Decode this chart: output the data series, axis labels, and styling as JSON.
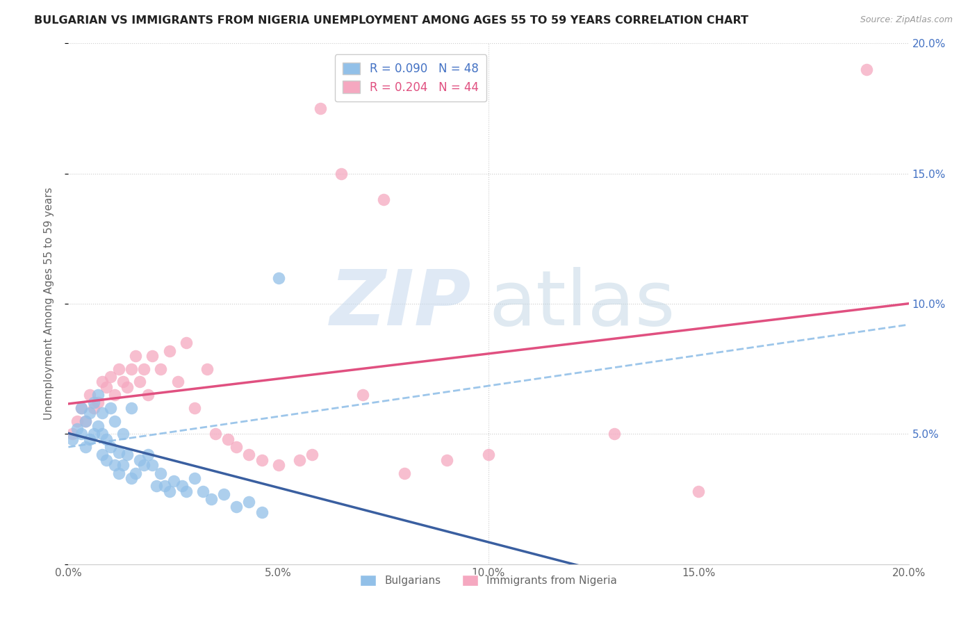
{
  "title": "BULGARIAN VS IMMIGRANTS FROM NIGERIA UNEMPLOYMENT AMONG AGES 55 TO 59 YEARS CORRELATION CHART",
  "source": "Source: ZipAtlas.com",
  "ylabel": "Unemployment Among Ages 55 to 59 years",
  "xlim": [
    0.0,
    0.2
  ],
  "ylim": [
    0.0,
    0.2
  ],
  "xticks": [
    0.0,
    0.05,
    0.1,
    0.15,
    0.2
  ],
  "yticks": [
    0.0,
    0.05,
    0.1,
    0.15,
    0.2
  ],
  "xticklabels": [
    "0.0%",
    "5.0%",
    "10.0%",
    "15.0%",
    "20.0%"
  ],
  "yticklabels_right": [
    "",
    "5.0%",
    "10.0%",
    "15.0%",
    "20.0%"
  ],
  "bulgarians_color": "#92c0e8",
  "nigeria_color": "#f5a8c0",
  "trendline_blue_solid": "#3a5fa0",
  "trendline_pink_solid": "#e05080",
  "trendline_blue_dash": "#92c0e8",
  "watermark_zip_color": "#c5d8ed",
  "watermark_atlas_color": "#b8cfe0",
  "background_color": "#ffffff",
  "bulgarians_x": [
    0.001,
    0.002,
    0.003,
    0.003,
    0.004,
    0.004,
    0.005,
    0.005,
    0.006,
    0.006,
    0.007,
    0.007,
    0.008,
    0.008,
    0.008,
    0.009,
    0.009,
    0.01,
    0.01,
    0.011,
    0.011,
    0.012,
    0.012,
    0.013,
    0.013,
    0.014,
    0.015,
    0.015,
    0.016,
    0.017,
    0.018,
    0.019,
    0.02,
    0.021,
    0.022,
    0.023,
    0.024,
    0.025,
    0.027,
    0.028,
    0.03,
    0.032,
    0.034,
    0.037,
    0.04,
    0.043,
    0.046,
    0.05
  ],
  "bulgarians_y": [
    0.048,
    0.052,
    0.05,
    0.06,
    0.055,
    0.045,
    0.048,
    0.058,
    0.05,
    0.062,
    0.053,
    0.065,
    0.05,
    0.042,
    0.058,
    0.048,
    0.04,
    0.06,
    0.045,
    0.055,
    0.038,
    0.043,
    0.035,
    0.05,
    0.038,
    0.042,
    0.06,
    0.033,
    0.035,
    0.04,
    0.038,
    0.042,
    0.038,
    0.03,
    0.035,
    0.03,
    0.028,
    0.032,
    0.03,
    0.028,
    0.033,
    0.028,
    0.025,
    0.027,
    0.022,
    0.024,
    0.02,
    0.11
  ],
  "nigeria_x": [
    0.001,
    0.002,
    0.003,
    0.004,
    0.005,
    0.006,
    0.007,
    0.008,
    0.009,
    0.01,
    0.011,
    0.012,
    0.013,
    0.014,
    0.015,
    0.016,
    0.017,
    0.018,
    0.019,
    0.02,
    0.022,
    0.024,
    0.026,
    0.028,
    0.03,
    0.033,
    0.035,
    0.038,
    0.04,
    0.043,
    0.046,
    0.05,
    0.055,
    0.058,
    0.06,
    0.065,
    0.07,
    0.075,
    0.08,
    0.09,
    0.1,
    0.13,
    0.15,
    0.19
  ],
  "nigeria_y": [
    0.05,
    0.055,
    0.06,
    0.055,
    0.065,
    0.06,
    0.062,
    0.07,
    0.068,
    0.072,
    0.065,
    0.075,
    0.07,
    0.068,
    0.075,
    0.08,
    0.07,
    0.075,
    0.065,
    0.08,
    0.075,
    0.082,
    0.07,
    0.085,
    0.06,
    0.075,
    0.05,
    0.048,
    0.045,
    0.042,
    0.04,
    0.038,
    0.04,
    0.042,
    0.175,
    0.15,
    0.065,
    0.14,
    0.035,
    0.04,
    0.042,
    0.05,
    0.028,
    0.19
  ]
}
